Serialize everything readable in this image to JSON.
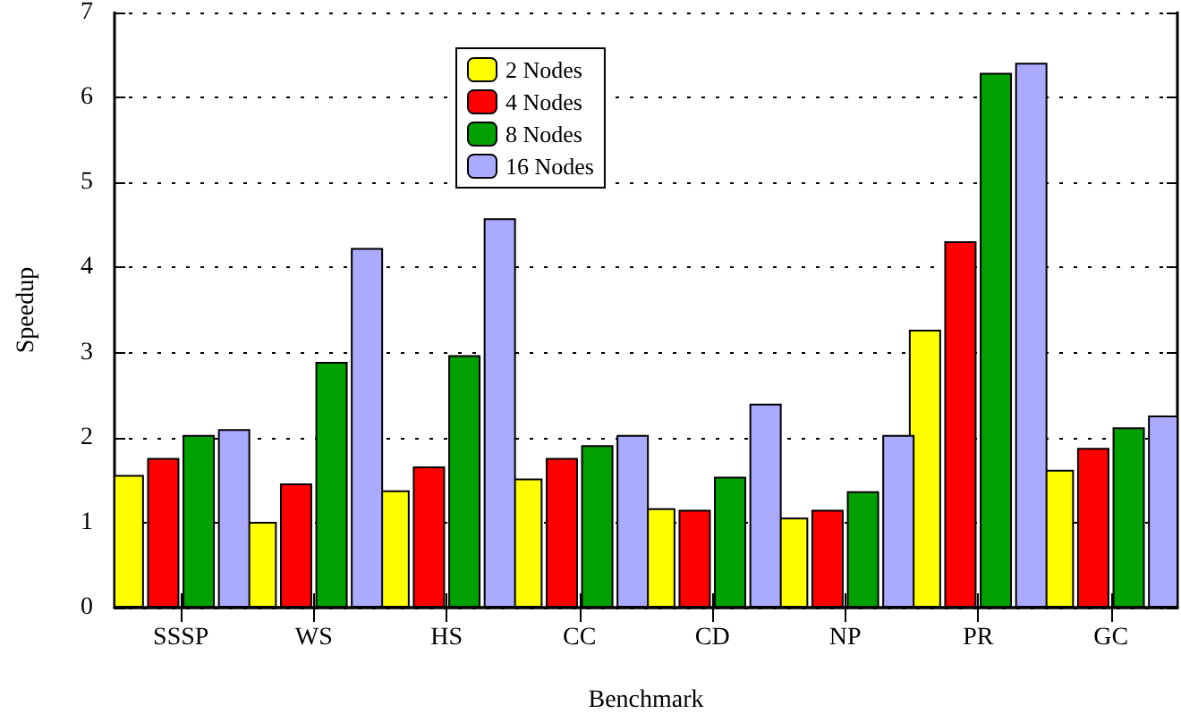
{
  "chart_data": {
    "type": "bar",
    "xlabel": "Benchmark",
    "ylabel": "Speedup",
    "categories": [
      "SSSP",
      "WS",
      "HS",
      "CC",
      "CD",
      "NP",
      "PR",
      "GC"
    ],
    "series": [
      {
        "name": "2 Nodes",
        "color": "#ffff00",
        "values": [
          1.56,
          1.01,
          1.38,
          1.52,
          1.17,
          1.06,
          3.27,
          1.62
        ]
      },
      {
        "name": "4 Nodes",
        "color": "#ff0000",
        "values": [
          1.76,
          1.46,
          1.66,
          1.76,
          1.15,
          1.15,
          4.31,
          1.88
        ]
      },
      {
        "name": "8 Nodes",
        "color": "#00a000",
        "values": [
          2.03,
          2.89,
          2.97,
          1.91,
          1.54,
          1.37,
          6.29,
          2.12
        ]
      },
      {
        "name": "16 Nodes",
        "color": "#aaaaff",
        "values": [
          2.1,
          4.23,
          4.58,
          2.03,
          2.4,
          2.03,
          6.41,
          2.26
        ]
      }
    ],
    "ylim": [
      0,
      7
    ],
    "yticks": [
      0,
      1,
      2,
      3,
      4,
      5,
      6,
      7
    ],
    "grid": "y",
    "legend": "top"
  }
}
